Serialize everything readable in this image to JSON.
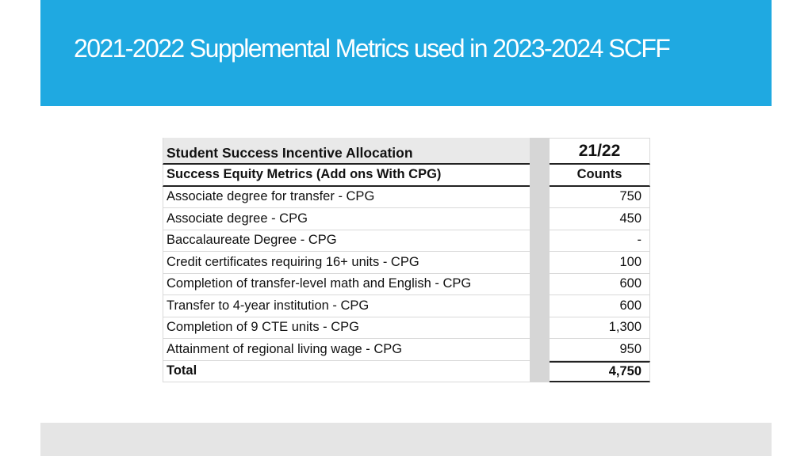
{
  "title": "2021-2022 Supplemental Metrics used in 2023-2024 SCFF",
  "table": {
    "header_label": "Student Success Incentive Allocation",
    "header_year": "21/22",
    "sub_label": "Success Equity Metrics (Add ons With CPG)",
    "sub_value": "Counts",
    "rows": [
      {
        "label": "Associate degree for transfer - CPG",
        "value": "750"
      },
      {
        "label": "Associate degree - CPG",
        "value": "450"
      },
      {
        "label": "Baccalaureate Degree - CPG",
        "value": "-"
      },
      {
        "label": "Credit certificates requiring 16+ units  - CPG",
        "value": "100"
      },
      {
        "label": "Completion of transfer-level math and English - CPG",
        "value": "600"
      },
      {
        "label": "Transfer to 4-year institution - CPG",
        "value": "600"
      },
      {
        "label": "Completion of 9 CTE units - CPG",
        "value": "1,300"
      },
      {
        "label": "Attainment of regional living wage - CPG",
        "value": "950"
      }
    ],
    "total_label": "Total",
    "total_value": "4,750"
  },
  "colors": {
    "banner": "#1fa9e1",
    "footer": "#e5e5e5",
    "gap_column": "#d6d6d6"
  }
}
